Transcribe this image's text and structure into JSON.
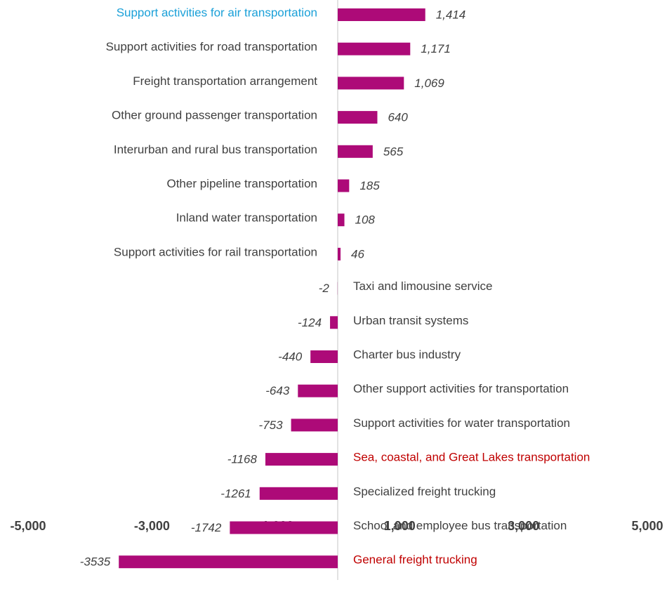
{
  "chart_data": {
    "type": "bar",
    "orientation": "horizontal",
    "categories": [
      "Support activities for air transportation",
      "Support activities for road transportation",
      "Freight transportation arrangement",
      "Other ground passenger transportation",
      "Interurban and rural bus transportation",
      "Other pipeline transportation",
      "Inland water transportation",
      "Support activities for rail transportation",
      "Taxi and limousine service",
      "Urban transit systems",
      "Charter bus industry",
      "Other support activities for transportation",
      "Support activities for water transportation",
      "Sea, coastal, and Great Lakes transportation",
      "Specialized freight trucking",
      "School and employee bus transportation",
      "General freight trucking"
    ],
    "category_colors": [
      "#1aa0d8",
      "#404040",
      "#404040",
      "#404040",
      "#404040",
      "#404040",
      "#404040",
      "#404040",
      "#404040",
      "#404040",
      "#404040",
      "#404040",
      "#404040",
      "#c00000",
      "#404040",
      "#404040",
      "#c00000"
    ],
    "values": [
      1414,
      1171,
      1069,
      640,
      565,
      185,
      108,
      46,
      -2,
      -124,
      -440,
      -643,
      -753,
      -1168,
      -1261,
      -1742,
      -3535
    ],
    "value_labels": [
      "1,414",
      "1,171",
      "1,069",
      "640",
      "565",
      "185",
      "108",
      "46",
      "-2",
      "-124",
      "-440",
      "-643",
      "-753",
      "-1168",
      "-1261",
      "-1742",
      "-3535"
    ],
    "color": "#ad0a78",
    "xlim": [
      -5000,
      5000
    ],
    "xticks": [
      {
        "value": -5000,
        "label": "-5,000"
      },
      {
        "value": -3000,
        "label": "-3,000"
      },
      {
        "value": -1000,
        "label": "-1,000"
      },
      {
        "value": 1000,
        "label": "1,000"
      },
      {
        "value": 3000,
        "label": "3,000"
      },
      {
        "value": 5000,
        "label": "5,000"
      }
    ],
    "grid": false
  }
}
